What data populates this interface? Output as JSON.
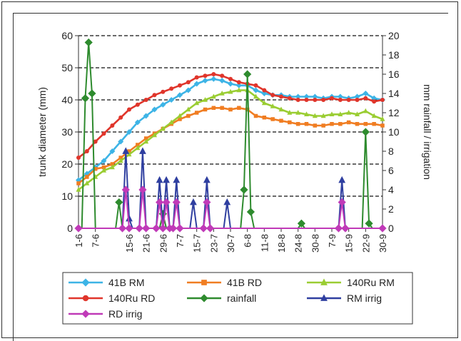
{
  "chart_data": {
    "type": "line",
    "categories": [
      "1-6",
      "7-6",
      "15-6",
      "21-6",
      "29-6",
      "7-7",
      "15-7",
      "23-7",
      "30-7",
      "6-8",
      "11-8",
      "18-8",
      "24-8",
      "30-8",
      "7-9",
      "15-9",
      "22-9",
      "30-9"
    ],
    "category_positions": [
      0,
      1,
      3,
      4,
      5,
      6,
      7,
      8,
      9,
      10,
      11,
      12,
      13,
      14,
      15,
      16,
      17,
      18
    ],
    "xlim": [
      0,
      18
    ],
    "left_axis": {
      "label": "trunk diameter (mm)",
      "ylim": [
        0,
        60
      ],
      "ticks": [
        0,
        10,
        20,
        30,
        40,
        50,
        60
      ]
    },
    "right_axis": {
      "label": "mm rainfall / irrigation",
      "ylim": [
        0,
        20
      ],
      "ticks": [
        0,
        2,
        4,
        6,
        8,
        10,
        12,
        14,
        16,
        18,
        20
      ]
    },
    "grid": "horizontal dashed",
    "legend_position": "bottom",
    "series": [
      {
        "name": "41B RM",
        "axis": "left",
        "color": "#3db4e6",
        "marker": "diamond",
        "x": [
          0,
          0.5,
          1,
          1.5,
          2,
          2.5,
          3,
          3.5,
          4,
          4.5,
          5,
          5.5,
          6,
          6.5,
          7,
          7.5,
          8,
          8.5,
          9,
          9.5,
          10,
          10.5,
          11,
          11.5,
          12,
          12.5,
          13,
          13.5,
          14,
          14.5,
          15,
          15.5,
          16,
          16.5,
          17,
          17.5,
          18
        ],
        "values": [
          15,
          17,
          19,
          21,
          24,
          27,
          30,
          33,
          35,
          37,
          38.5,
          40,
          41.5,
          43,
          45,
          46,
          46.5,
          46,
          45,
          44.5,
          44.5,
          43,
          42,
          41.5,
          41.5,
          41,
          41,
          41,
          41,
          40.5,
          41,
          41,
          40.5,
          41,
          42,
          40.5,
          40
        ]
      },
      {
        "name": "41B RD",
        "axis": "left",
        "color": "#f07d22",
        "marker": "square",
        "x": [
          0,
          0.5,
          1,
          1.5,
          2,
          2.5,
          3,
          3.5,
          4,
          4.5,
          5,
          5.5,
          6,
          6.5,
          7,
          7.5,
          8,
          8.5,
          9,
          9.5,
          10,
          10.5,
          11,
          11.5,
          12,
          12.5,
          13,
          13.5,
          14,
          14.5,
          15,
          15.5,
          16,
          16.5,
          17,
          17.5,
          18
        ],
        "values": [
          14,
          16,
          18.5,
          19,
          20,
          22,
          24,
          26,
          28,
          29.5,
          31,
          32.5,
          34,
          35,
          36,
          37,
          37.5,
          37.5,
          37,
          37.5,
          37,
          35,
          34.5,
          34,
          33.5,
          33,
          32.5,
          32.5,
          32,
          32,
          32.5,
          32.5,
          33,
          32.5,
          32.5,
          32.5,
          32
        ]
      },
      {
        "name": "140Ru RM",
        "axis": "left",
        "color": "#9acd32",
        "marker": "triangle",
        "x": [
          0,
          0.5,
          1,
          1.5,
          2,
          2.5,
          3,
          3.5,
          4,
          4.5,
          5,
          5.5,
          6,
          6.5,
          7,
          7.5,
          8,
          8.5,
          9,
          9.5,
          10,
          10.5,
          11,
          11.5,
          12,
          12.5,
          13,
          13.5,
          14,
          14.5,
          15,
          15.5,
          16,
          16.5,
          17,
          17.5,
          18
        ],
        "values": [
          12,
          14,
          16,
          18,
          19,
          21,
          23,
          25,
          27,
          29,
          31,
          33,
          35,
          37,
          39,
          40,
          41,
          42,
          42.5,
          43,
          43,
          41,
          39,
          38,
          37,
          36,
          36,
          35.5,
          35,
          35,
          35.5,
          35.5,
          36,
          35.5,
          36.5,
          35,
          34
        ]
      },
      {
        "name": "140Ru RD",
        "axis": "left",
        "color": "#e0352b",
        "marker": "circle",
        "x": [
          0,
          0.5,
          1,
          1.5,
          2,
          2.5,
          3,
          3.5,
          4,
          4.5,
          5,
          5.5,
          6,
          6.5,
          7,
          7.5,
          8,
          8.5,
          9,
          9.5,
          10,
          10.5,
          11,
          11.5,
          12,
          12.5,
          13,
          13.5,
          14,
          14.5,
          15,
          15.5,
          16,
          16.5,
          17,
          17.5,
          18
        ],
        "values": [
          22,
          24,
          27,
          29.5,
          32,
          34.5,
          37,
          38.5,
          40,
          41.5,
          42.5,
          43.5,
          44.5,
          45.5,
          47,
          47.5,
          48,
          47.5,
          46.5,
          45.5,
          45,
          44.5,
          43,
          41.5,
          41,
          40.5,
          40,
          40,
          40,
          40,
          40.5,
          40,
          40,
          40,
          40.5,
          39.5,
          40
        ]
      },
      {
        "name": "rainfall",
        "axis": "right",
        "color": "#2e8b2e",
        "marker": "diamond",
        "x": [
          0,
          0.2,
          0.4,
          0.6,
          0.8,
          1,
          1.2,
          1.4,
          1.6,
          2.2,
          2.4,
          2.6,
          4.8,
          5,
          5.2,
          9.6,
          9.8,
          10,
          10.2,
          10.4,
          10.6,
          10.8,
          11.6,
          11.8,
          12,
          12.2,
          12.4,
          12.6,
          13,
          13.2,
          13.4,
          14,
          14.2,
          14.4,
          16.6,
          16.8,
          17,
          17.2,
          17.4,
          17.6,
          18
        ],
        "values": [
          0,
          0,
          13.5,
          19.3,
          14,
          0,
          0,
          0,
          0,
          0,
          2.7,
          0,
          0,
          1.5,
          0,
          0,
          4,
          16,
          1.7,
          0,
          0,
          0,
          0,
          0,
          0,
          0,
          0,
          0,
          0,
          0.5,
          0,
          0,
          0,
          0,
          0,
          0,
          10,
          0.5,
          0,
          0,
          0
        ]
      },
      {
        "name": "RM irrig",
        "axis": "right",
        "color": "#2f3fa0",
        "marker": "triangle",
        "x": [
          0,
          2.2,
          2.6,
          2.8,
          3,
          3.2,
          3.6,
          3.8,
          4,
          4.2,
          4.6,
          4.8,
          5,
          5.2,
          5.4,
          5.6,
          5.8,
          6,
          6.2,
          6.6,
          6.8,
          7,
          7.4,
          7.6,
          7.8,
          8,
          8.2,
          8.6,
          8.8,
          9,
          15.4,
          15.6,
          15.8,
          18
        ],
        "values": [
          0,
          0,
          0,
          8,
          1,
          0,
          0,
          8,
          0,
          0,
          0,
          5,
          0,
          5,
          0,
          0,
          5,
          0,
          0,
          0,
          2.7,
          0,
          0,
          5,
          0,
          0,
          0,
          0,
          2.7,
          0,
          0,
          5,
          0,
          0
        ]
      },
      {
        "name": "RD irrig",
        "axis": "right",
        "color": "#c03ab8",
        "marker": "diamond",
        "x": [
          0,
          2.6,
          2.8,
          3,
          3.6,
          3.8,
          4,
          4.6,
          4.8,
          5,
          5.2,
          5.4,
          5.6,
          5.8,
          6,
          7.4,
          7.6,
          7.8,
          15.4,
          15.6,
          15.8,
          18
        ],
        "values": [
          0,
          0,
          4,
          0,
          0,
          4,
          0,
          0,
          2.7,
          0,
          2.7,
          0,
          0,
          2.7,
          0,
          0,
          2.7,
          0,
          0,
          2.7,
          0,
          0
        ]
      }
    ]
  }
}
